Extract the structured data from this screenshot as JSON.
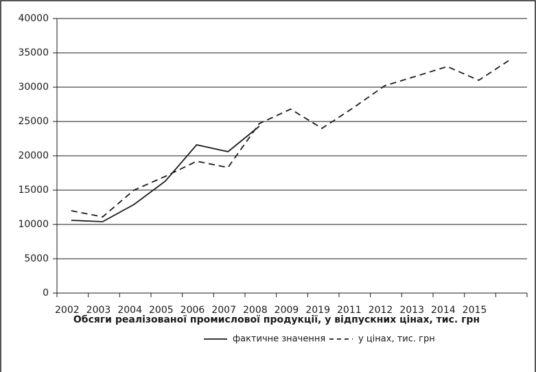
{
  "chart_data": {
    "type": "line",
    "xlabel": "Обсяги реалізованої промислової продукції, у відпускних цінах, тис. грн",
    "categories": [
      "2002",
      "2003",
      "2004",
      "2005",
      "2006",
      "2007",
      "2008",
      "2009",
      "2019",
      "2011",
      "2012",
      "2013",
      "2014",
      "2015",
      null
    ],
    "series": [
      {
        "name": "фактичне значення",
        "color": "#1a1a1a",
        "dash": "solid",
        "values": [
          10600,
          10400,
          12900,
          16300,
          21600,
          20600,
          24300,
          null,
          null,
          null,
          null,
          null,
          null,
          null,
          null
        ]
      },
      {
        "name": "у цінах, тис. грн",
        "color": "#1a1a1a",
        "dash": "dashed",
        "values": [
          12000,
          11100,
          15000,
          17000,
          19200,
          18300,
          24700,
          26800,
          24000,
          27000,
          30200,
          31600,
          33000,
          31000,
          34000
        ]
      }
    ],
    "ylim": [
      0,
      40000
    ],
    "yticks": [
      0,
      5000,
      10000,
      15000,
      20000,
      25000,
      30000,
      35000,
      40000
    ],
    "grid": true
  }
}
